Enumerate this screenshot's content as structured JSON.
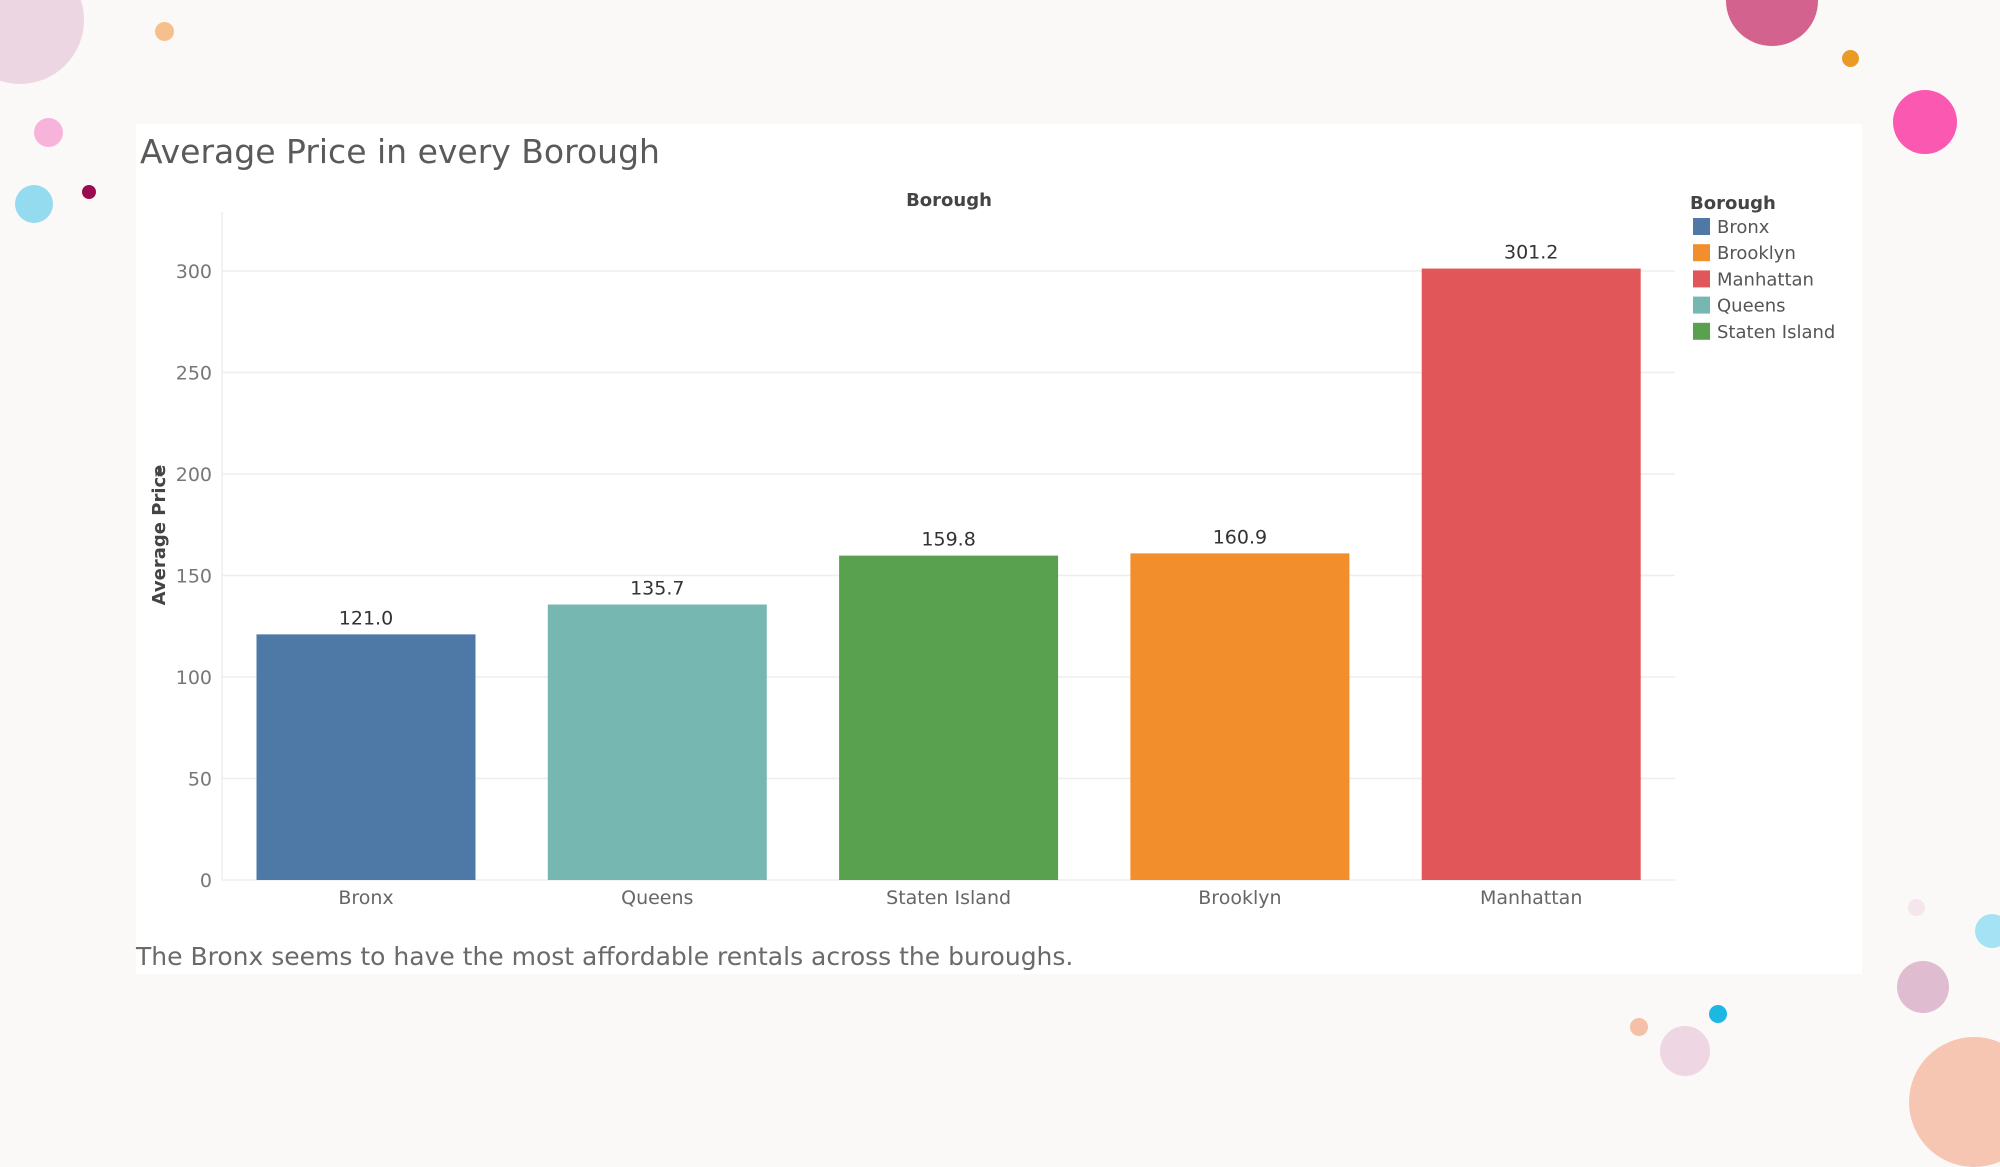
{
  "chart_data": {
    "type": "bar",
    "title": "Average Price in every Borough",
    "top_label": "Borough",
    "xlabel": "",
    "ylabel": "Average Price",
    "ylim": [
      0,
      325
    ],
    "yticks": [
      0,
      50,
      100,
      150,
      200,
      250,
      300
    ],
    "grid": true,
    "legend_position": "right",
    "legend_title": "Borough",
    "legend": [
      {
        "name": "Bronx",
        "color": "#4e79a7"
      },
      {
        "name": "Brooklyn",
        "color": "#f28e2b"
      },
      {
        "name": "Manhattan",
        "color": "#e15759"
      },
      {
        "name": "Queens",
        "color": "#76b7b2"
      },
      {
        "name": "Staten Island",
        "color": "#59a14f"
      }
    ],
    "categories": [
      "Bronx",
      "Queens",
      "Staten Island",
      "Brooklyn",
      "Manhattan"
    ],
    "values": [
      121.0,
      135.7,
      159.8,
      160.9,
      301.2
    ],
    "value_labels": [
      "121.0",
      "135.7",
      "159.8",
      "160.9",
      "301.2"
    ],
    "colors": [
      "#4e79a7",
      "#76b7b2",
      "#59a14f",
      "#f28e2b",
      "#e15759"
    ]
  },
  "caption": "The Bronx seems to have the most affordable rentals across the buroughs."
}
